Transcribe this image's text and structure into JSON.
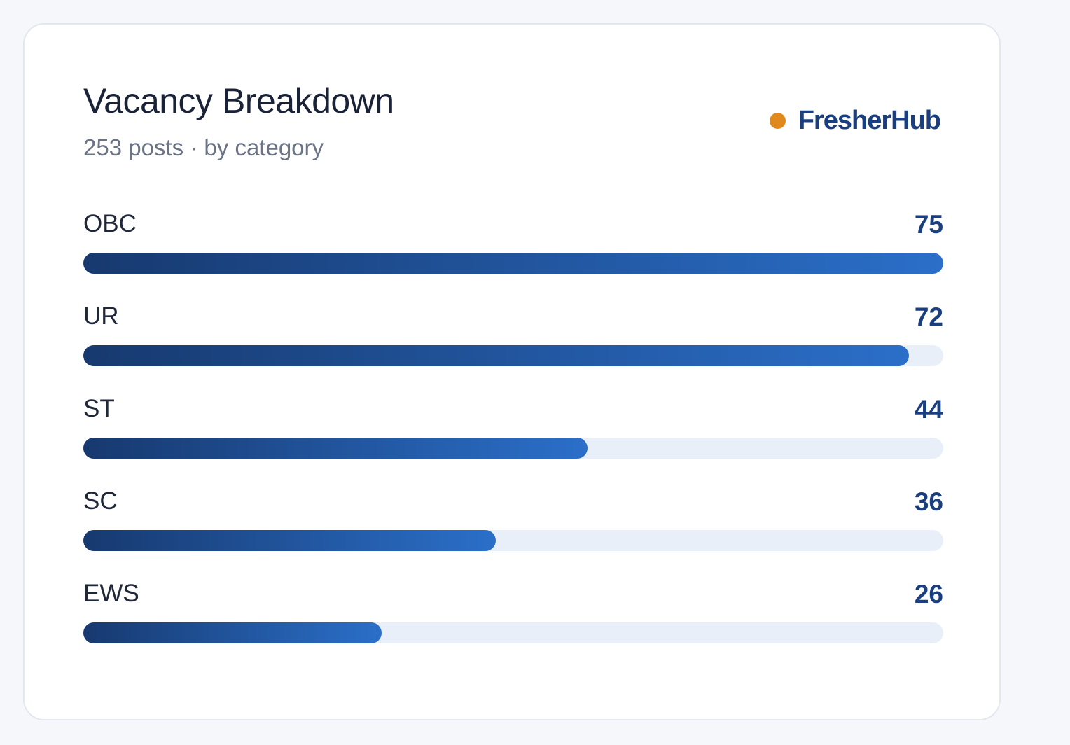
{
  "header": {
    "title": "Vacancy Breakdown",
    "subtitle": "253 posts · by category"
  },
  "brand": {
    "name": "FresherHub",
    "dot_color": "#e08a1e",
    "name_color": "#1b3f7e"
  },
  "colors": {
    "bar_start": "#17396f",
    "bar_end": "#2b6fc9",
    "track": "#e9eff9",
    "value_text": "#1b3f7e"
  },
  "chart_data": {
    "type": "bar",
    "orientation": "horizontal",
    "title": "Vacancy Breakdown",
    "subtitle": "253 posts · by category",
    "categories": [
      "OBC",
      "UR",
      "ST",
      "SC",
      "EWS"
    ],
    "values": [
      75,
      72,
      44,
      36,
      26
    ],
    "xlim": [
      0,
      75
    ],
    "grid": false,
    "legend": "none"
  }
}
